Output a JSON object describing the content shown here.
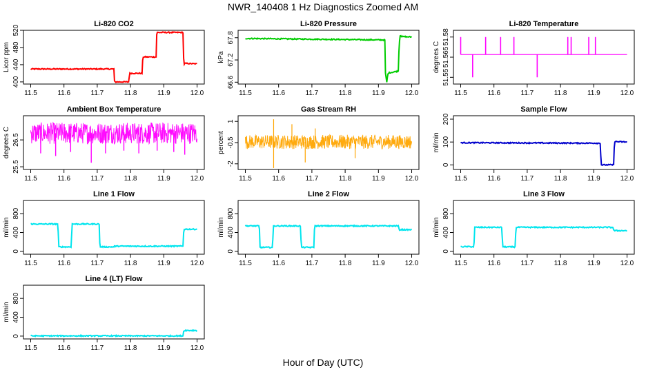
{
  "figure": {
    "title": "NWR_140408  1 Hz Diagnostics Zoomed AM",
    "xlabel": "Hour of Day (UTC)"
  },
  "chart_data": [
    {
      "type": "line",
      "title": "Li-820 CO2",
      "ylabel": "Licor ppm",
      "color": "#ff0000",
      "xlim": [
        11.5,
        12.0
      ],
      "ylim": [
        395,
        520
      ],
      "yticks": [
        400,
        440,
        480,
        520
      ],
      "x": [
        11.5,
        11.75,
        11.752,
        11.795,
        11.797,
        11.835,
        11.837,
        11.877,
        11.879,
        11.958,
        11.96,
        11.963,
        12.0
      ],
      "y": [
        430,
        430,
        400,
        400,
        420,
        420,
        458,
        458,
        515,
        515,
        440,
        443,
        442
      ]
    },
    {
      "type": "line",
      "title": "Li-820 Pressure",
      "ylabel": "kPa",
      "color": "#00cc00",
      "xlim": [
        11.5,
        12.0
      ],
      "ylim": [
        66.55,
        68.0
      ],
      "yticks": [
        66.6,
        67.2,
        67.8
      ],
      "x": [
        11.5,
        11.92,
        11.921,
        11.925,
        11.928,
        11.93,
        11.96,
        11.962,
        11.966,
        11.968,
        11.97,
        12.0
      ],
      "y": [
        67.78,
        67.74,
        66.85,
        66.6,
        66.8,
        66.85,
        66.9,
        67.6,
        67.9,
        67.85,
        67.83,
        67.82
      ]
    },
    {
      "type": "line",
      "title": "Li-820 Temperature",
      "ylabel": "degrees C",
      "color": "#ff00ff",
      "xlim": [
        11.5,
        12.0
      ],
      "ylim": [
        51.545,
        51.585
      ],
      "yticks": [
        51.55,
        51.565,
        51.58
      ],
      "baseline": 51.567,
      "spikes": [
        {
          "x": 11.5,
          "y": 51.58
        },
        {
          "x": 11.536,
          "y": 51.55
        },
        {
          "x": 11.575,
          "y": 51.58
        },
        {
          "x": 11.62,
          "y": 51.58
        },
        {
          "x": 11.66,
          "y": 51.58
        },
        {
          "x": 11.73,
          "y": 51.55
        },
        {
          "x": 11.822,
          "y": 51.58
        },
        {
          "x": 11.832,
          "y": 51.58
        },
        {
          "x": 11.885,
          "y": 51.58
        },
        {
          "x": 11.905,
          "y": 51.58
        }
      ]
    },
    {
      "type": "line",
      "title": "Ambient Box Temperature",
      "ylabel": "degrees C",
      "color": "#ff00ff",
      "xlim": [
        11.5,
        12.0
      ],
      "ylim": [
        25.4,
        27.4
      ],
      "yticks": [
        25.5,
        26.5
      ],
      "band": [
        26.35,
        27.15
      ],
      "mean": 26.75,
      "dips": [
        {
          "x": 11.53,
          "y": 26.0
        },
        {
          "x": 11.575,
          "y": 25.9
        },
        {
          "x": 11.62,
          "y": 26.05
        },
        {
          "x": 11.682,
          "y": 25.65
        },
        {
          "x": 11.725,
          "y": 26.0
        },
        {
          "x": 11.78,
          "y": 26.1
        },
        {
          "x": 11.825,
          "y": 26.0
        },
        {
          "x": 11.88,
          "y": 26.1
        },
        {
          "x": 11.93,
          "y": 26.05
        },
        {
          "x": 11.963,
          "y": 25.95
        }
      ]
    },
    {
      "type": "scatter",
      "title": "Gas Stream RH",
      "ylabel": "percent",
      "color": "#ffa500",
      "xlim": [
        11.5,
        12.0
      ],
      "ylim": [
        -2.4,
        1.4
      ],
      "yticks": [
        -2.0,
        -0.5,
        1.0
      ],
      "band": [
        -0.95,
        0.05
      ],
      "mean": -0.45,
      "outliers": [
        {
          "x": 11.585,
          "y": -2.3
        },
        {
          "x": 11.585,
          "y": 1.15
        },
        {
          "x": 11.68,
          "y": -1.9
        },
        {
          "x": 11.64,
          "y": 0.8
        },
        {
          "x": 11.71,
          "y": 0.5
        },
        {
          "x": 11.83,
          "y": -1.6
        }
      ]
    },
    {
      "type": "line",
      "title": "Sample Flow",
      "ylabel": "ml/min",
      "color": "#0000cc",
      "xlim": [
        11.5,
        12.0
      ],
      "ylim": [
        -20,
        215
      ],
      "yticks": [
        0,
        100,
        200
      ],
      "x": [
        11.5,
        11.92,
        11.922,
        11.96,
        11.962,
        12.0
      ],
      "y": [
        97,
        95,
        0,
        0,
        102,
        100
      ]
    },
    {
      "type": "line",
      "title": "Line 1 Flow",
      "ylabel": "ml/min",
      "color": "#00e5ee",
      "xlim": [
        11.5,
        12.0
      ],
      "ylim": [
        -60,
        1080
      ],
      "yticks": [
        0,
        400,
        800
      ],
      "x": [
        11.5,
        11.582,
        11.584,
        11.622,
        11.624,
        11.706,
        11.708,
        11.75,
        11.752,
        11.958,
        11.96,
        12.0
      ],
      "y": [
        580,
        580,
        95,
        95,
        580,
        580,
        95,
        95,
        110,
        110,
        470,
        470
      ]
    },
    {
      "type": "line",
      "title": "Line 2 Flow",
      "ylabel": "ml/min",
      "color": "#00e5ee",
      "xlim": [
        11.5,
        12.0
      ],
      "ylim": [
        -60,
        1080
      ],
      "yticks": [
        0,
        400,
        800
      ],
      "x": [
        11.5,
        11.542,
        11.544,
        11.582,
        11.584,
        11.666,
        11.668,
        11.706,
        11.708,
        11.96,
        11.962,
        12.0
      ],
      "y": [
        540,
        540,
        85,
        85,
        540,
        540,
        85,
        85,
        540,
        540,
        460,
        460
      ]
    },
    {
      "type": "line",
      "title": "Line 3 Flow",
      "ylabel": "ml/min",
      "color": "#00e5ee",
      "xlim": [
        11.5,
        12.0
      ],
      "ylim": [
        -60,
        1080
      ],
      "yticks": [
        0,
        400,
        800
      ],
      "x": [
        11.5,
        11.54,
        11.542,
        11.624,
        11.626,
        11.664,
        11.666,
        11.958,
        11.96,
        12.0
      ],
      "y": [
        100,
        100,
        510,
        510,
        95,
        95,
        510,
        510,
        440,
        440
      ]
    },
    {
      "type": "line",
      "title": "Line 4 (LT) Flow",
      "ylabel": "ml/min",
      "color": "#00e5ee",
      "xlim": [
        11.5,
        12.0
      ],
      "ylim": [
        -60,
        1080
      ],
      "yticks": [
        0,
        400,
        800
      ],
      "x": [
        11.5,
        11.958,
        11.96,
        12.0
      ],
      "y": [
        5,
        5,
        120,
        120
      ]
    }
  ]
}
